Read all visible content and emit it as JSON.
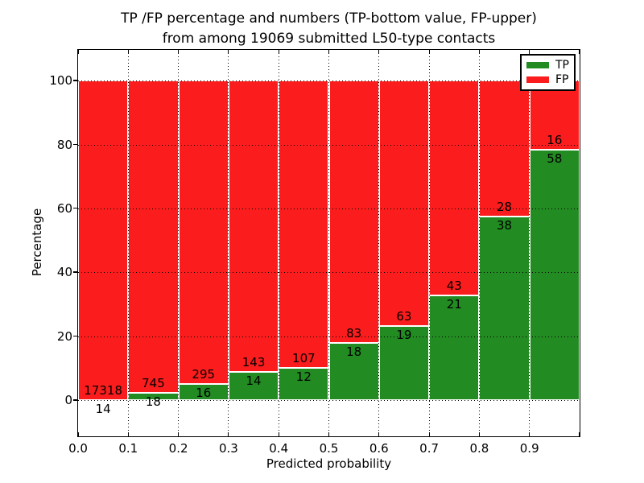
{
  "figure": {
    "title_line1": "TP /FP percentage and numbers (TP-bottom value, FP-upper)",
    "title_line2": "from among 19069 submitted L50-type contacts",
    "xlabel": "Predicted probability",
    "ylabel": "Percentage"
  },
  "legend": {
    "items": [
      {
        "label": "TP",
        "color": "#228b22"
      },
      {
        "label": "FP",
        "color": "#fb1d1d"
      }
    ]
  },
  "chart_data": {
    "type": "bar",
    "subtype": "stacked-percentage-histogram",
    "title": "TP /FP percentage and numbers (TP-bottom value, FP-upper) from among 19069 submitted L50-type contacts",
    "xlabel": "Predicted probability",
    "ylabel": "Percentage",
    "x_tick_labels": [
      "0.0",
      "0.1",
      "0.2",
      "0.3",
      "0.4",
      "0.5",
      "0.6",
      "0.7",
      "0.8",
      "0.9"
    ],
    "y_ticks": [
      0,
      20,
      40,
      60,
      80,
      100
    ],
    "xlim": [
      0.0,
      1.0
    ],
    "ylim": [
      -11.3,
      109.6
    ],
    "bin_width": 0.1,
    "categories": [
      "0.0-0.1",
      "0.1-0.2",
      "0.2-0.3",
      "0.3-0.4",
      "0.4-0.5",
      "0.5-0.6",
      "0.6-0.7",
      "0.7-0.8",
      "0.8-0.9",
      "0.9-1.0"
    ],
    "series": [
      {
        "name": "TP",
        "color": "#228b22",
        "counts": [
          14,
          18,
          16,
          14,
          12,
          18,
          19,
          21,
          38,
          58
        ]
      },
      {
        "name": "FP",
        "color": "#fb1d1d",
        "counts": [
          17318,
          745,
          295,
          143,
          107,
          83,
          63,
          43,
          28,
          16
        ]
      }
    ],
    "tp_percent_approx": [
      0.08,
      2.36,
      5.14,
      8.92,
      10.08,
      17.82,
      23.17,
      32.81,
      57.58,
      78.38
    ],
    "total_contacts": 19069,
    "grid": "dotted black, both axes, on top of bars",
    "bar_edge_color": "#ffffff",
    "legend_position": "upper right"
  }
}
